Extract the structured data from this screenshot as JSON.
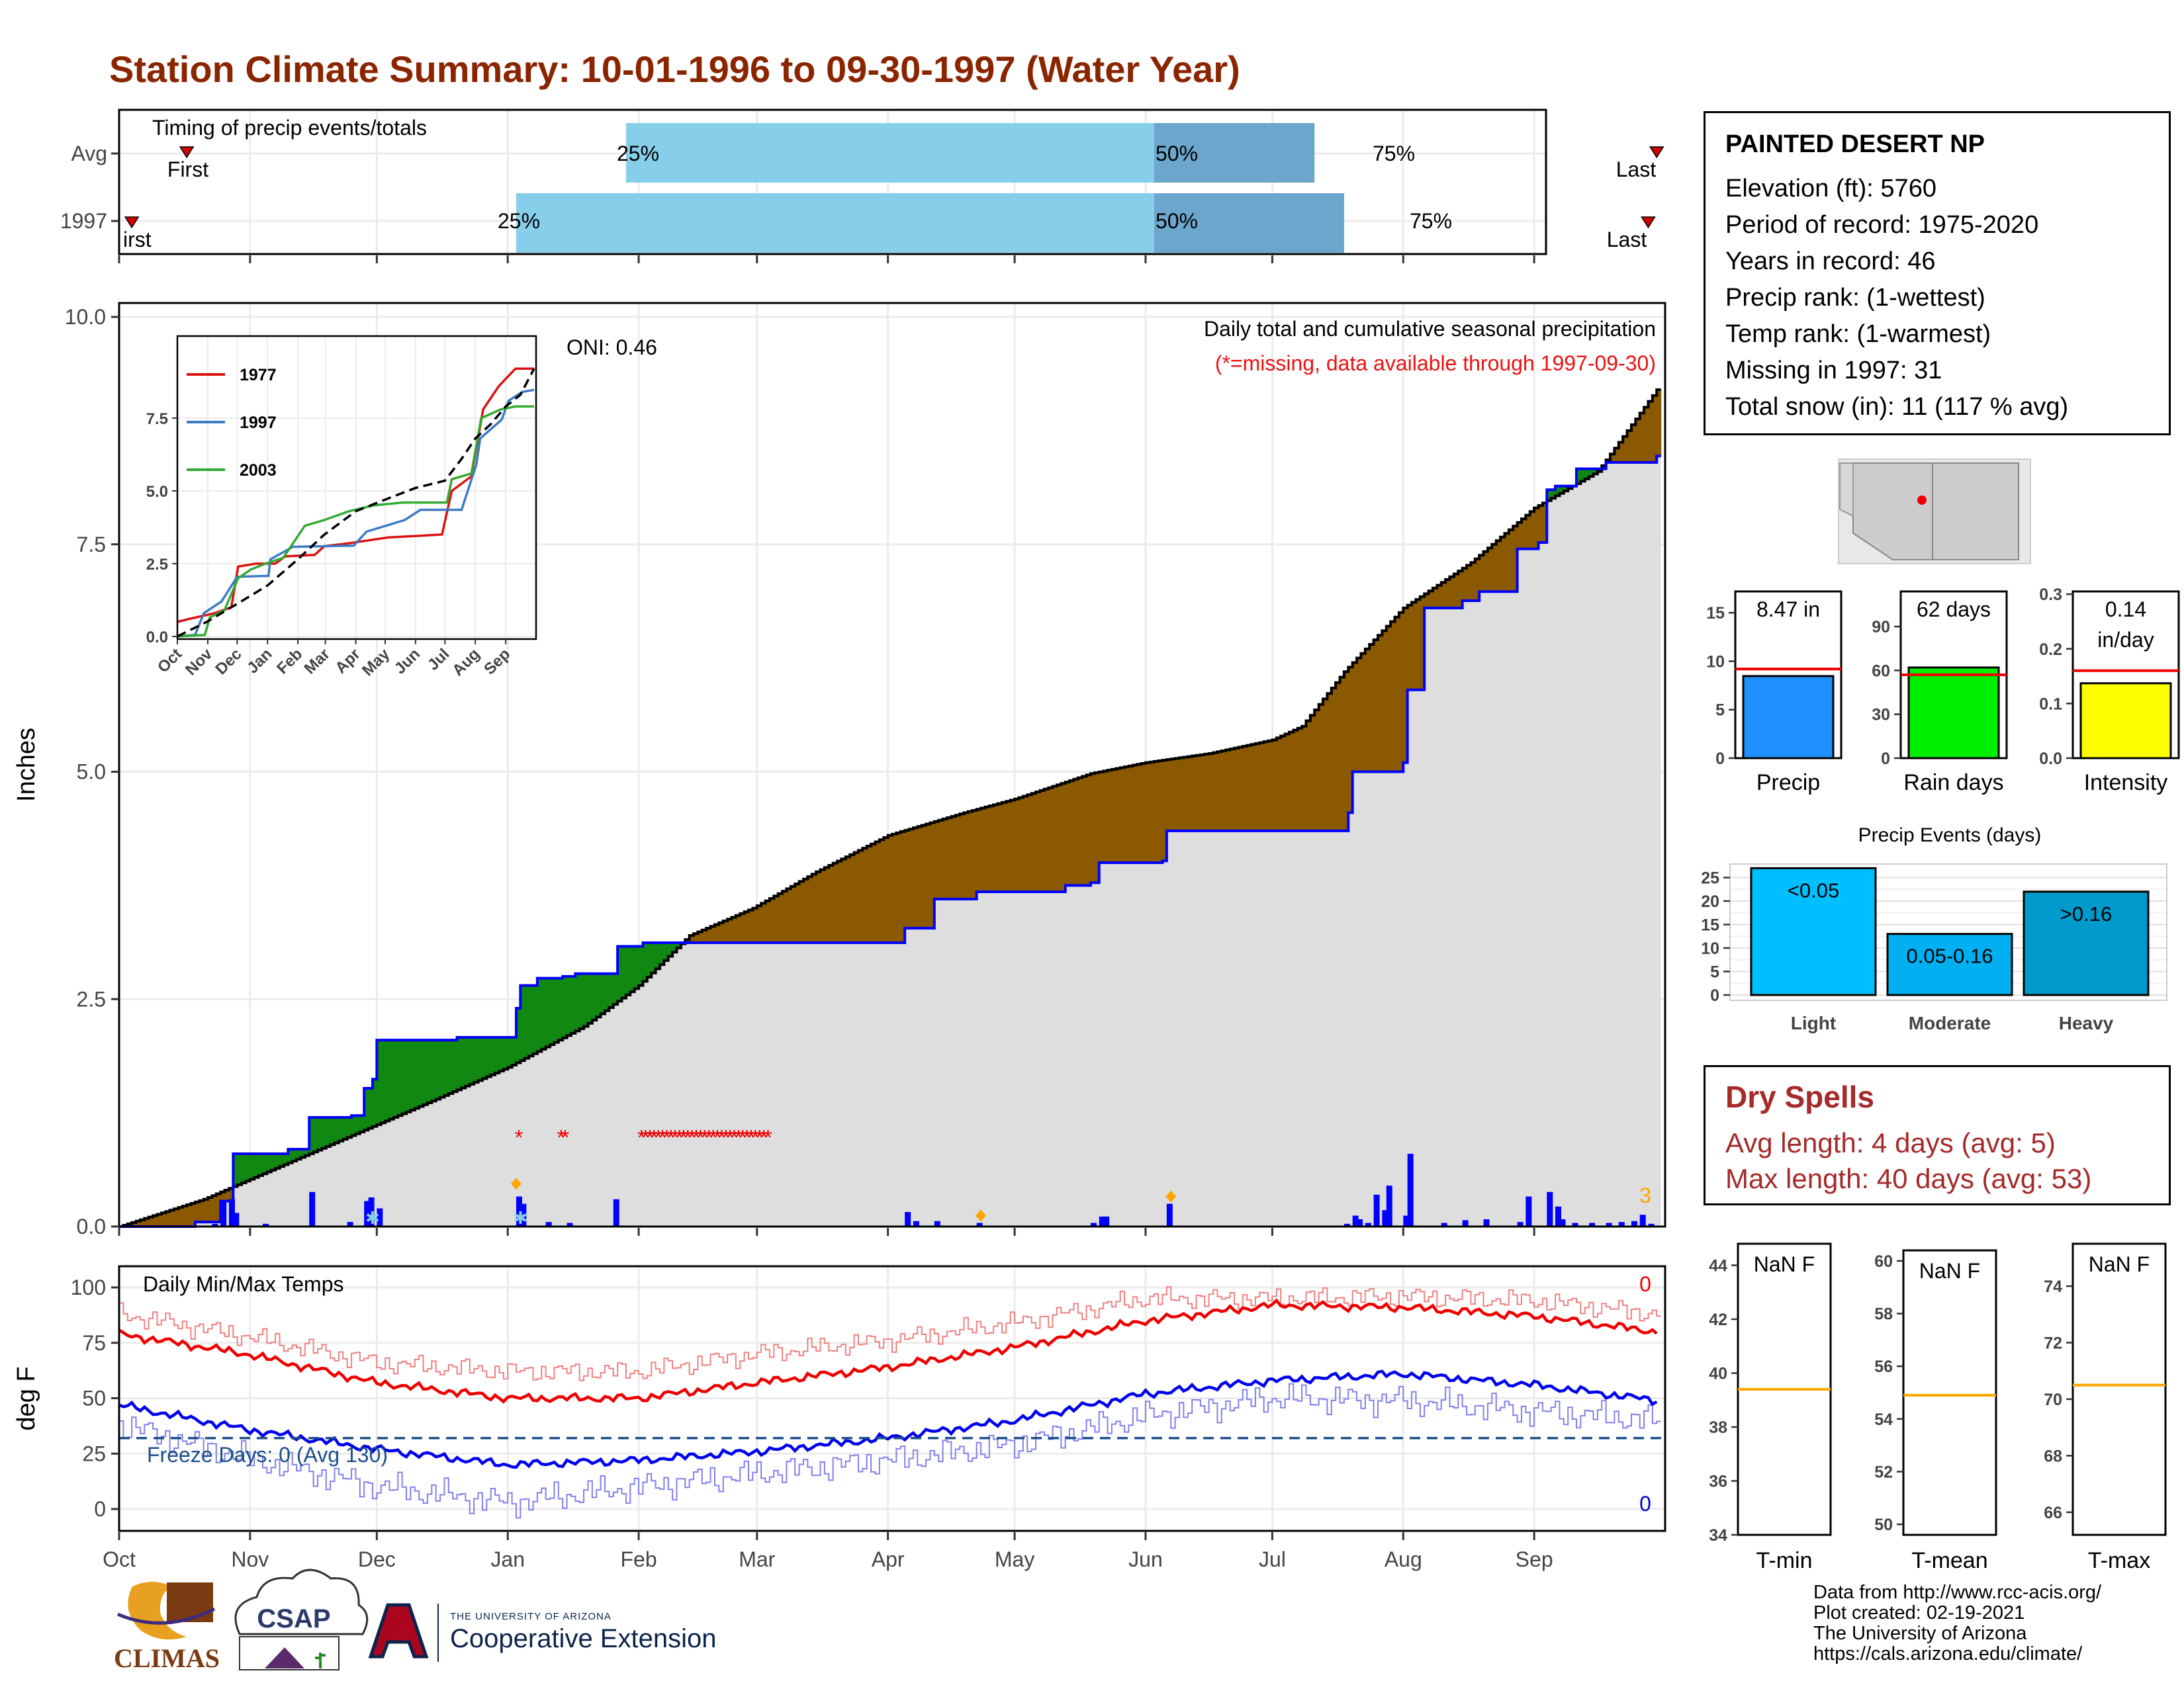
{
  "title": "Station Climate Summary: 10-01-1996 to 09-30-1997 (Water Year)",
  "colors": {
    "title": "#8b2500",
    "light_blue": "#87ceeb",
    "mid_blue": "#6ca6cd",
    "brown": "#8b5a00",
    "green": "#118811",
    "cum_line": "#0000ff",
    "gray_fill": "#dedede",
    "dry_text": "#a52a2a"
  },
  "station": {
    "name": "PAINTED DESERT NP",
    "lines": [
      "Elevation (ft): 5760",
      "Period of record: 1975-2020",
      "Years in record: 46",
      "Precip rank:  (1-wettest)",
      "Temp rank:  (1-warmest)",
      "Missing in 1997: 31",
      "Total snow (in): 11 (117 % avg)"
    ]
  },
  "timing": {
    "label": "Timing of precip events/totals",
    "rows": [
      "Avg",
      "1997"
    ],
    "first_label": "First",
    "first_label_clipped": "irst",
    "last_label": "Last",
    "q25": "25%",
    "q50": "50%",
    "q75": "75%",
    "avg": {
      "first": 16,
      "q25": 120,
      "q50": 245,
      "q75": 283,
      "last": 364
    },
    "yr": {
      "first": 3,
      "q25": 94,
      "q50": 245,
      "q75": 290,
      "last": 362
    }
  },
  "months": [
    "Oct",
    "Nov",
    "Dec",
    "Jan",
    "Feb",
    "Mar",
    "Apr",
    "May",
    "Jun",
    "Jul",
    "Aug",
    "Sep"
  ],
  "month_days": [
    0,
    31,
    61,
    92,
    123,
    151,
    182,
    212,
    243,
    273,
    304,
    335
  ],
  "main": {
    "ylabel": "Inches",
    "yticks": [
      "0.0",
      "2.5",
      "5.0",
      "7.5",
      "10.0"
    ],
    "title": "Daily total and cumulative seasonal precipitation",
    "subtitle": "(*=missing, data available through 1997-09-30)",
    "oni": "ONI: 0.46",
    "snow_total": "3",
    "avg_cum": [
      [
        0,
        0
      ],
      [
        20,
        0.3
      ],
      [
        30,
        0.5
      ],
      [
        45,
        0.8
      ],
      [
        60,
        1.1
      ],
      [
        75,
        1.4
      ],
      [
        92,
        1.75
      ],
      [
        100,
        1.95
      ],
      [
        110,
        2.2
      ],
      [
        123,
        2.65
      ],
      [
        135,
        3.2
      ],
      [
        150,
        3.5
      ],
      [
        165,
        3.9
      ],
      [
        182,
        4.3
      ],
      [
        200,
        4.55
      ],
      [
        212,
        4.7
      ],
      [
        230,
        4.98
      ],
      [
        243,
        5.1
      ],
      [
        258,
        5.2
      ],
      [
        273,
        5.35
      ],
      [
        280,
        5.5
      ],
      [
        290,
        6.1
      ],
      [
        304,
        6.8
      ],
      [
        320,
        7.3
      ],
      [
        335,
        7.9
      ],
      [
        350,
        8.3
      ],
      [
        364,
        9.2
      ]
    ],
    "cum_1997": [
      [
        0,
        0
      ],
      [
        18,
        0.05
      ],
      [
        24,
        0.28
      ],
      [
        27,
        0.8
      ],
      [
        40,
        0.85
      ],
      [
        45,
        1.2
      ],
      [
        55,
        1.22
      ],
      [
        58,
        1.52
      ],
      [
        60,
        1.62
      ],
      [
        61,
        2.05
      ],
      [
        78,
        2.05
      ],
      [
        80,
        2.08
      ],
      [
        93,
        2.08
      ],
      [
        94,
        2.4
      ],
      [
        95,
        2.65
      ],
      [
        99,
        2.73
      ],
      [
        105,
        2.75
      ],
      [
        108,
        2.78
      ],
      [
        118,
        2.8
      ],
      [
        118,
        3.08
      ],
      [
        124,
        3.12
      ],
      [
        180,
        3.12
      ],
      [
        186,
        3.28
      ],
      [
        193,
        3.6
      ],
      [
        203,
        3.68
      ],
      [
        224,
        3.75
      ],
      [
        230,
        3.78
      ],
      [
        232,
        4.0
      ],
      [
        247,
        4.02
      ],
      [
        248,
        4.35
      ],
      [
        271,
        4.35
      ],
      [
        290,
        4.35
      ],
      [
        291,
        4.55
      ],
      [
        292,
        5.0
      ],
      [
        304,
        5.1
      ],
      [
        305,
        5.9
      ],
      [
        309,
        6.8
      ],
      [
        318,
        6.88
      ],
      [
        322,
        6.98
      ],
      [
        331,
        7.45
      ],
      [
        336,
        7.52
      ],
      [
        338,
        8.1
      ],
      [
        340,
        8.14
      ],
      [
        345,
        8.33
      ],
      [
        352,
        8.4
      ],
      [
        364,
        8.47
      ]
    ],
    "daily": [
      [
        22,
        0.03
      ],
      [
        24,
        0.27
      ],
      [
        26,
        0.3
      ],
      [
        27,
        0.15
      ],
      [
        34,
        0.03
      ],
      [
        45,
        0.38
      ],
      [
        54,
        0.05
      ],
      [
        58,
        0.28
      ],
      [
        59,
        0.32
      ],
      [
        61,
        0.2
      ],
      [
        94,
        0.33
      ],
      [
        95,
        0.25
      ],
      [
        101,
        0.05
      ],
      [
        106,
        0.04
      ],
      [
        117,
        0.3
      ],
      [
        186,
        0.16
      ],
      [
        188,
        0.06
      ],
      [
        193,
        0.06
      ],
      [
        203,
        0.04
      ],
      [
        230,
        0.04
      ],
      [
        232,
        0.11
      ],
      [
        233,
        0.11
      ],
      [
        248,
        0.25
      ],
      [
        290,
        0.03
      ],
      [
        292,
        0.12
      ],
      [
        293,
        0.08
      ],
      [
        295,
        0.04
      ],
      [
        297,
        0.35
      ],
      [
        299,
        0.18
      ],
      [
        300,
        0.45
      ],
      [
        304,
        0.12
      ],
      [
        305,
        0.8
      ],
      [
        313,
        0.04
      ],
      [
        318,
        0.07
      ],
      [
        323,
        0.08
      ],
      [
        331,
        0.05
      ],
      [
        333,
        0.33
      ],
      [
        338,
        0.38
      ],
      [
        340,
        0.22
      ],
      [
        341,
        0.08
      ],
      [
        344,
        0.04
      ],
      [
        348,
        0.04
      ],
      [
        352,
        0.04
      ],
      [
        355,
        0.05
      ],
      [
        358,
        0.06
      ],
      [
        360,
        0.13
      ],
      [
        362,
        0.03
      ]
    ],
    "snow_days": [
      [
        60,
        0.04
      ],
      [
        95,
        0.04
      ]
    ],
    "orange_marks": [
      [
        94,
        0.47
      ],
      [
        204,
        0.12
      ],
      [
        249,
        0.33
      ]
    ],
    "missing_days": [
      94,
      104,
      105,
      123,
      124,
      125,
      126,
      127,
      128,
      129,
      130,
      131,
      132,
      133,
      134,
      135,
      136,
      137,
      138,
      139,
      140,
      141,
      142,
      143,
      144,
      145,
      146,
      147,
      148,
      149,
      150,
      151,
      152,
      153
    ]
  },
  "inset": {
    "yticks": [
      "0.0",
      "2.5",
      "5.0",
      "7.5"
    ],
    "months": [
      "Oct",
      "Nov",
      "Dec",
      "Jan",
      "Feb",
      "Mar",
      "Apr",
      "May",
      "Jun",
      "Jul",
      "Aug",
      "Sep"
    ],
    "series": [
      {
        "name": "1977",
        "color": "#dd1111",
        "values": [
          [
            0,
            0.5
          ],
          [
            12,
            0.6
          ],
          [
            38,
            0.8
          ],
          [
            55,
            1.0
          ],
          [
            62,
            2.4
          ],
          [
            80,
            2.5
          ],
          [
            100,
            2.5
          ],
          [
            110,
            2.75
          ],
          [
            140,
            2.8
          ],
          [
            150,
            3.1
          ],
          [
            175,
            3.2
          ],
          [
            215,
            3.4
          ],
          [
            270,
            3.5
          ],
          [
            280,
            5.0
          ],
          [
            300,
            5.5
          ],
          [
            312,
            7.8
          ],
          [
            328,
            8.6
          ],
          [
            345,
            9.2
          ],
          [
            364,
            9.2
          ]
        ]
      },
      {
        "name": "1997",
        "color": "#3c7bc3",
        "values": [
          [
            0,
            0
          ],
          [
            18,
            0.05
          ],
          [
            27,
            0.8
          ],
          [
            45,
            1.2
          ],
          [
            61,
            2.05
          ],
          [
            93,
            2.08
          ],
          [
            95,
            2.65
          ],
          [
            118,
            3.08
          ],
          [
            180,
            3.12
          ],
          [
            193,
            3.6
          ],
          [
            232,
            4.0
          ],
          [
            248,
            4.35
          ],
          [
            290,
            4.35
          ],
          [
            305,
            5.9
          ],
          [
            309,
            6.8
          ],
          [
            331,
            7.45
          ],
          [
            338,
            8.1
          ],
          [
            352,
            8.4
          ],
          [
            364,
            8.47
          ]
        ]
      },
      {
        "name": "2003",
        "color": "#33aa33",
        "values": [
          [
            0,
            0
          ],
          [
            28,
            0.05
          ],
          [
            33,
            0.65
          ],
          [
            48,
            0.9
          ],
          [
            62,
            2.0
          ],
          [
            75,
            2.3
          ],
          [
            90,
            2.5
          ],
          [
            108,
            2.7
          ],
          [
            130,
            3.8
          ],
          [
            150,
            4.0
          ],
          [
            175,
            4.3
          ],
          [
            200,
            4.5
          ],
          [
            230,
            4.6
          ],
          [
            260,
            4.6
          ],
          [
            275,
            4.6
          ],
          [
            280,
            5.4
          ],
          [
            300,
            5.6
          ],
          [
            310,
            7.5
          ],
          [
            330,
            7.8
          ],
          [
            345,
            7.9
          ],
          [
            364,
            7.9
          ]
        ]
      }
    ],
    "average": {
      "values": [
        [
          0,
          0
        ],
        [
          30,
          0.5
        ],
        [
          60,
          1.1
        ],
        [
          92,
          1.75
        ],
        [
          123,
          2.65
        ],
        [
          150,
          3.5
        ],
        [
          182,
          4.3
        ],
        [
          212,
          4.7
        ],
        [
          243,
          5.1
        ],
        [
          273,
          5.35
        ],
        [
          290,
          6.1
        ],
        [
          304,
          6.8
        ],
        [
          320,
          7.3
        ],
        [
          335,
          7.9
        ],
        [
          350,
          8.3
        ],
        [
          364,
          9.2
        ]
      ]
    }
  },
  "temps": {
    "title": "Daily Min/Max Temps",
    "ylabel": "deg F",
    "yticks": [
      "0",
      "25",
      "50",
      "75",
      "100"
    ],
    "freeze_label": "Freeze Days: 0 (Avg 130)",
    "max_count": "0",
    "min_count": "0",
    "freeze_line": 32,
    "avg_max": [
      [
        0,
        79
      ],
      [
        30,
        70
      ],
      [
        61,
        57
      ],
      [
        92,
        50
      ],
      [
        123,
        50
      ],
      [
        151,
        57
      ],
      [
        182,
        64
      ],
      [
        212,
        73
      ],
      [
        243,
        85
      ],
      [
        273,
        92
      ],
      [
        304,
        91
      ],
      [
        335,
        87
      ],
      [
        364,
        80
      ]
    ],
    "avg_min": [
      [
        0,
        47
      ],
      [
        30,
        36
      ],
      [
        61,
        27
      ],
      [
        92,
        20
      ],
      [
        123,
        22
      ],
      [
        151,
        26
      ],
      [
        182,
        32
      ],
      [
        212,
        40
      ],
      [
        243,
        52
      ],
      [
        273,
        58
      ],
      [
        304,
        61
      ],
      [
        335,
        56
      ],
      [
        364,
        49
      ]
    ],
    "obs_max": [
      [
        0,
        88
      ],
      [
        30,
        78
      ],
      [
        61,
        66
      ],
      [
        92,
        62
      ],
      [
        123,
        62
      ],
      [
        151,
        70
      ],
      [
        182,
        76
      ],
      [
        212,
        84
      ],
      [
        243,
        95
      ],
      [
        273,
        95
      ],
      [
        304,
        96
      ],
      [
        335,
        94
      ],
      [
        364,
        88
      ]
    ],
    "obs_min": [
      [
        0,
        38
      ],
      [
        30,
        23
      ],
      [
        61,
        10
      ],
      [
        92,
        3
      ],
      [
        123,
        10
      ],
      [
        151,
        16
      ],
      [
        182,
        22
      ],
      [
        212,
        29
      ],
      [
        243,
        42
      ],
      [
        273,
        50
      ],
      [
        304,
        49
      ],
      [
        335,
        44
      ],
      [
        364,
        40
      ]
    ]
  },
  "bars3": [
    {
      "label": "Precip",
      "value_text": "8.47 in",
      "value": 8.47,
      "avg": 9.2,
      "ymax": 17.2,
      "yticks": [
        "0",
        "5",
        "10",
        "15"
      ],
      "tickvals": [
        0,
        5,
        10,
        15
      ],
      "color": "#1e90ff"
    },
    {
      "label": "Rain days",
      "value_text": "62 days",
      "value": 62,
      "avg": 57,
      "ymax": 114,
      "yticks": [
        "0",
        "30",
        "60",
        "90"
      ],
      "tickvals": [
        0,
        30,
        60,
        90
      ],
      "color": "#00ee00"
    },
    {
      "label": "Intensity",
      "value_text": "0.14",
      "value_text2": "in/day",
      "value": 0.137,
      "avg": 0.16,
      "ymax": 0.305,
      "yticks": [
        "0.0",
        "0.1",
        "0.2",
        "0.3"
      ],
      "tickvals": [
        0,
        0.1,
        0.2,
        0.3
      ],
      "color": "#ffff00"
    }
  ],
  "events": {
    "title": "Precip Events (days)",
    "yticks": [
      "0",
      "5",
      "10",
      "15",
      "20",
      "25"
    ],
    "bars": [
      {
        "label": "Light",
        "value": 27,
        "text": "<0.05",
        "color": "#00bfff"
      },
      {
        "label": "Moderate",
        "value": 13,
        "text": "0.05-0.16",
        "color": "#00b0f0"
      },
      {
        "label": "Heavy",
        "value": 22,
        "text": ">0.16",
        "color": "#009acd"
      }
    ]
  },
  "dry": {
    "heading": "Dry Spells",
    "avg_length": "Avg length: 4 days (avg: 5)",
    "max_length": "Max length: 40 days (avg: 53)"
  },
  "tpanels": [
    {
      "label": "T-min",
      "value_text": "NaN F",
      "yticks": [
        "34",
        "36",
        "38",
        "40",
        "42",
        "44"
      ],
      "tickvals": [
        34,
        36,
        38,
        40,
        42,
        44
      ],
      "min": 34,
      "max": 44.8,
      "avg": 39.4
    },
    {
      "label": "T-mean",
      "value_text": "NaN F",
      "yticks": [
        "50",
        "52",
        "54",
        "56",
        "58",
        "60"
      ],
      "tickvals": [
        50,
        52,
        54,
        56,
        58,
        60
      ],
      "min": 49.6,
      "max": 60.4,
      "avg": 54.9
    },
    {
      "label": "T-max",
      "value_text": "NaN F",
      "yticks": [
        "66",
        "68",
        "70",
        "72",
        "74"
      ],
      "tickvals": [
        66,
        68,
        70,
        72,
        74
      ],
      "min": 65.2,
      "max": 75.5,
      "avg": 70.5
    }
  ],
  "logos": {
    "climas": "CLIMAS",
    "csap": "CSAP",
    "ua_top": "THE UNIVERSITY OF ARIZONA",
    "ua_main": "Cooperative Extension"
  },
  "credits": [
    "Data from http://www.rcc-acis.org/",
    "Plot created: 02-19-2021",
    "The University of Arizona",
    "https://cals.arizona.edu/climate/"
  ]
}
